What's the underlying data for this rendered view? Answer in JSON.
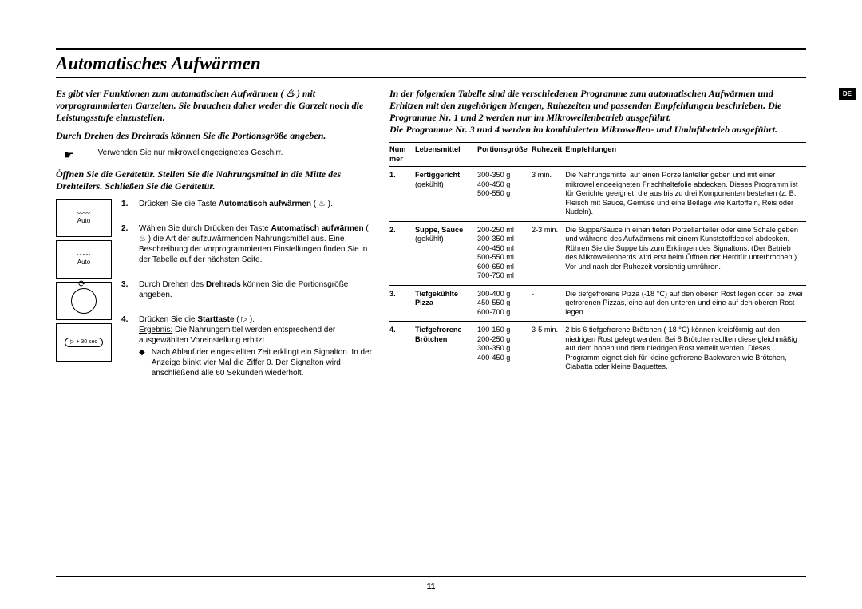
{
  "page": {
    "number": "11",
    "lang_tab": "DE"
  },
  "title": "Automatisches Aufwärmen",
  "left": {
    "intro1": "Es gibt vier Funktionen zum automatischen Aufwärmen ( ♨ ) mit vorprogrammierten Garzeiten. Sie brauchen daher weder die Garzeit noch die Leistungsstufe einzustellen.",
    "intro2": "Durch Drehen des Drehrads können Sie die Portionsgröße angeben.",
    "pointer": "Verwenden Sie nur mikrowellengeeignetes Geschirr.",
    "intro3": "Öffnen Sie die Gerätetür. Stellen Sie die Nahrungsmittel in die Mitte des Drehtellers. Schließen Sie die Gerätetür.",
    "icons": [
      "〰\nAuto",
      "〰\nAuto",
      "○",
      "▷ + 30 sec"
    ],
    "steps": [
      {
        "pre": "Drücken Sie die Taste ",
        "bold": "Automatisch aufwärmen",
        "post": " ( ♨ )."
      },
      {
        "pre": "Wählen Sie durch Drücken der Taste ",
        "bold": "Automatisch aufwärmen",
        "post": " ( ♨ ) die Art der aufzuwärmenden Nahrungsmittel aus. Eine Beschreibung der vorprogrammierten Einstellungen finden Sie in der Tabelle auf der nächsten Seite."
      },
      {
        "pre": "Durch Drehen des ",
        "bold": "Drehrads",
        "post": " können Sie die Portionsgröße angeben."
      },
      {
        "pre": "Drücken Sie die ",
        "bold": "Starttaste",
        "post": " ( ▷ ).",
        "result_label": "Ergebnis:",
        "result": " Die Nahrungsmittel werden entsprechend der ausgewählten Voreinstellung erhitzt.",
        "sub": "Nach Ablauf der eingestellten Zeit erklingt ein Signalton. In der Anzeige blinkt vier Mal die Ziffer 0. Der Signalton wird anschließend alle 60 Sekunden wiederholt."
      }
    ]
  },
  "right": {
    "intro": "In der folgenden Tabelle sind die verschiedenen Programme zum automatischen Aufwärmen und Erhitzen mit den zugehörigen Mengen, Ruhezeiten und passenden Empfehlungen beschrieben. Die Programme Nr. 1 und 2 werden nur im Mikrowellenbetrieb ausgeführt.\nDie Programme Nr. 3 und 4 werden im kombinierten Mikrowellen- und Umluftbetrieb ausgeführt.",
    "headers": [
      "Num\nmer",
      "Lebensmittel",
      "Portionsgröße",
      "Ruhezeit",
      "Empfehlungen"
    ],
    "rows": [
      {
        "num": "1.",
        "food": "Fertiggericht",
        "food_sub": "(gekühlt)",
        "portion": "300-350 g\n400-450 g\n500-550 g",
        "rest": "3 min.",
        "rec": "Die Nahrungsmittel auf einen Porzellanteller geben und mit einer mikrowellengeeigneten Frischhaltefolie abdecken. Dieses Programm ist für Gerichte geeignet, die aus bis zu drei Komponenten bestehen (z. B. Fleisch mit Sauce, Gemüse und eine Beilage wie Kartoffeln, Reis oder Nudeln)."
      },
      {
        "num": "2.",
        "food": "Suppe, Sauce",
        "food_sub": "(gekühlt)",
        "portion": "200-250 ml\n300-350 ml\n400-450 ml\n500-550 ml\n600-650 ml\n700-750 ml",
        "rest": "2-3 min.",
        "rec": "Die Suppe/Sauce in einen tiefen Porzellanteller oder eine Schale geben und während des Aufwärmens mit einem Kunststoffdeckel abdecken. Rühren Sie die Suppe bis zum Erklingen des Signaltons. (Der Betrieb des Mikrowellenherds wird erst beim Öffnen der Herdtür unterbrochen.). Vor und nach der Ruhezeit vorsichtig umrühren."
      },
      {
        "num": "3.",
        "food": "Tiefgekühlte Pizza",
        "food_sub": "",
        "portion": "300-400 g\n450-550 g\n600-700 g",
        "rest": "-",
        "rec": "Die tiefgefrorene Pizza (-18 °C) auf den oberen Rost legen oder, bei zwei gefrorenen Pizzas, eine auf den unteren und eine auf den oberen Rost legen."
      },
      {
        "num": "4.",
        "food": "Tiefgefrorene Brötchen",
        "food_sub": "",
        "portion": "100-150 g\n200-250 g\n300-350 g\n400-450 g",
        "rest": "3-5 min.",
        "rec": "2 bis 6 tiefgefrorene Brötchen (-18 °C) können kreisförmig auf den niedrigen Rost gelegt werden. Bei 8 Brötchen sollten diese gleichmäßig auf dem hohen und dem niedrigen Rost verteilt werden. Dieses Programm eignet sich für kleine gefrorene Backwaren wie Brötchen, Ciabatta oder kleine Baguettes."
      }
    ]
  }
}
